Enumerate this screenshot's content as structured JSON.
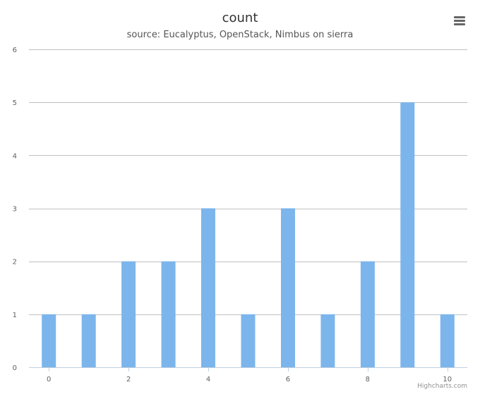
{
  "chart_data": {
    "type": "bar",
    "title": "count",
    "subtitle": "source: Eucalyptus, OpenStack, Nimbus on sierra",
    "x": [
      0,
      1,
      2,
      3,
      4,
      5,
      6,
      7,
      8,
      9,
      10
    ],
    "values": [
      1,
      1,
      2,
      2,
      3,
      1,
      3,
      1,
      2,
      5,
      1
    ],
    "xticks": [
      0,
      2,
      4,
      6,
      8,
      10
    ],
    "yticks": [
      0,
      1,
      2,
      3,
      4,
      5,
      6
    ],
    "xlim": [
      -0.5,
      10.5
    ],
    "ylim": [
      0,
      6
    ],
    "xlabel": "",
    "ylabel": "",
    "grid": true,
    "legend": "none",
    "bar_color": "#7cb5ec",
    "grid_color": "#c0c0c0",
    "axis_color": "#c0d0e0"
  },
  "menu": {
    "icon": "hamburger-menu-icon"
  },
  "credits": {
    "text": "Highcharts.com"
  }
}
